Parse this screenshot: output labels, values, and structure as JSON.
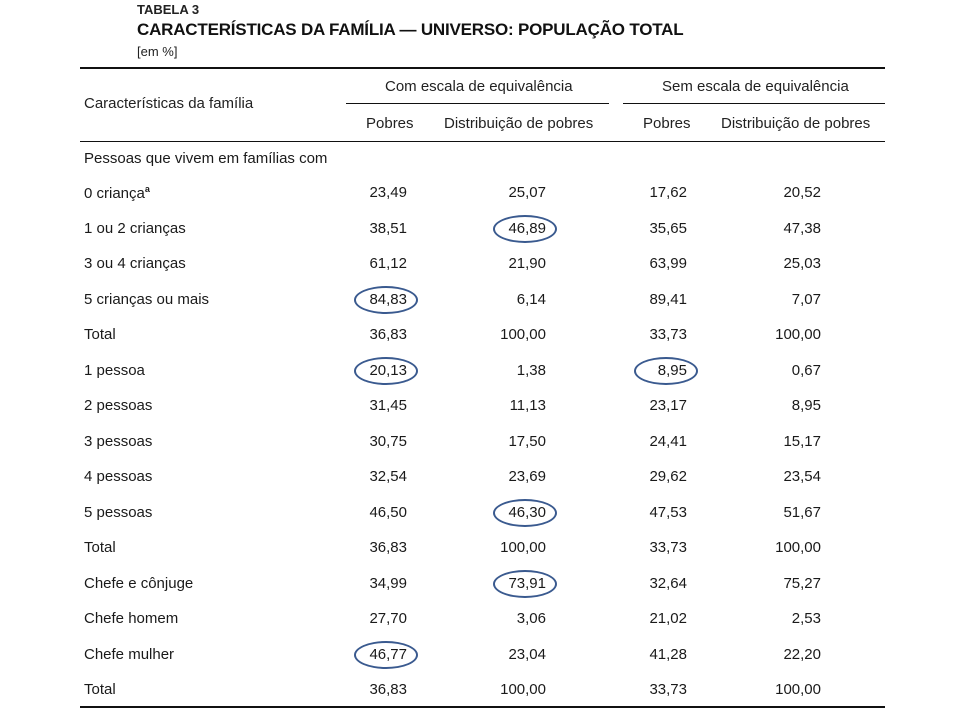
{
  "table_label": "TABELA 3",
  "title": "CARACTERÍSTICAS DA FAMÍLIA — UNIVERSO: POPULAÇÃO TOTAL",
  "unit": "[em %]",
  "header": {
    "row_label": "Características da família",
    "group1": "Com escala de equivalência",
    "group2": "Sem escala de equivalência",
    "col_pobres": "Pobres",
    "col_dist1": "Distribuição de pobres",
    "col_dist2": "Distribuição de pobres"
  },
  "section_label": "Pessoas que vivem em famílias com",
  "rows": [
    {
      "label": "0 criança",
      "sup": "a",
      "values": [
        "23,49",
        "25,07",
        "17,62",
        "20,52"
      ]
    },
    {
      "label": "1 ou 2 crianças",
      "values": [
        "38,51",
        "46,89",
        "35,65",
        "47,38"
      ]
    },
    {
      "label": "3 ou 4 crianças",
      "values": [
        "61,12",
        "21,90",
        "63,99",
        "25,03"
      ]
    },
    {
      "label": "5 crianças ou mais",
      "values": [
        "84,83",
        "6,14",
        "89,41",
        "7,07"
      ]
    },
    {
      "label": "Total",
      "values": [
        "36,83",
        "100,00",
        "33,73",
        "100,00"
      ]
    },
    {
      "label": "1 pessoa",
      "values": [
        "20,13",
        "1,38",
        "8,95",
        "0,67"
      ]
    },
    {
      "label": "2 pessoas",
      "values": [
        "31,45",
        "11,13",
        "23,17",
        "8,95"
      ]
    },
    {
      "label": "3 pessoas",
      "values": [
        "30,75",
        "17,50",
        "24,41",
        "15,17"
      ]
    },
    {
      "label": "4 pessoas",
      "values": [
        "32,54",
        "23,69",
        "29,62",
        "23,54"
      ]
    },
    {
      "label": "5 pessoas",
      "values": [
        "46,50",
        "46,30",
        "47,53",
        "51,67"
      ]
    },
    {
      "label": "Total",
      "values": [
        "36,83",
        "100,00",
        "33,73",
        "100,00"
      ]
    },
    {
      "label": "Chefe e cônjuge",
      "values": [
        "34,99",
        "73,91",
        "32,64",
        "75,27"
      ]
    },
    {
      "label": "Chefe homem",
      "values": [
        "27,70",
        "3,06",
        "21,02",
        "2,53"
      ]
    },
    {
      "label": "Chefe mulher",
      "values": [
        "46,77",
        "23,04",
        "41,28",
        "22,20"
      ]
    },
    {
      "label": "Total",
      "values": [
        "36,83",
        "100,00",
        "33,73",
        "100,00"
      ]
    }
  ],
  "highlighted_cells": [
    {
      "row": 1,
      "col": 1
    },
    {
      "row": 3,
      "col": 0
    },
    {
      "row": 5,
      "col": 0
    },
    {
      "row": 5,
      "col": 2
    },
    {
      "row": 9,
      "col": 1
    },
    {
      "row": 11,
      "col": 1
    },
    {
      "row": 13,
      "col": 0
    }
  ]
}
